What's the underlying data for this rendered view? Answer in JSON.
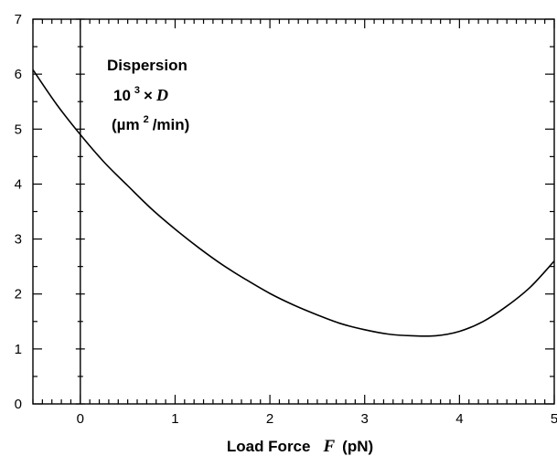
{
  "chart_data": {
    "type": "line",
    "title": "",
    "xlabel": {
      "prefix": "Load Force",
      "symbol": "F",
      "unit": "(pN)"
    },
    "ylabel": "",
    "xlim": [
      -0.5,
      5
    ],
    "ylim": [
      0,
      7
    ],
    "x_ticks": [
      "0",
      "1",
      "2",
      "3",
      "4",
      "5"
    ],
    "y_ticks": [
      "0",
      "1",
      "2",
      "3",
      "4",
      "5",
      "6",
      "7"
    ],
    "grid": false,
    "reference_line_x": 0,
    "annotation": {
      "line1": "Dispersion",
      "line2_base": "10",
      "line2_exp": "3",
      "line2_times": "×",
      "line2_symbol": "D",
      "line3_open": "(µm",
      "line3_exp": "2",
      "line3_close": "/min)"
    },
    "series": [
      {
        "x": [
          -0.5,
          -0.25,
          0,
          0.25,
          0.5,
          0.75,
          1,
          1.25,
          1.5,
          1.75,
          2,
          2.25,
          2.5,
          2.75,
          3,
          3.25,
          3.5,
          3.75,
          4,
          4.25,
          4.5,
          4.75,
          5
        ],
        "y": [
          6.08,
          5.45,
          4.9,
          4.4,
          3.97,
          3.55,
          3.18,
          2.84,
          2.53,
          2.26,
          2.01,
          1.8,
          1.62,
          1.46,
          1.35,
          1.27,
          1.24,
          1.24,
          1.32,
          1.5,
          1.78,
          2.13,
          2.6
        ]
      }
    ]
  }
}
